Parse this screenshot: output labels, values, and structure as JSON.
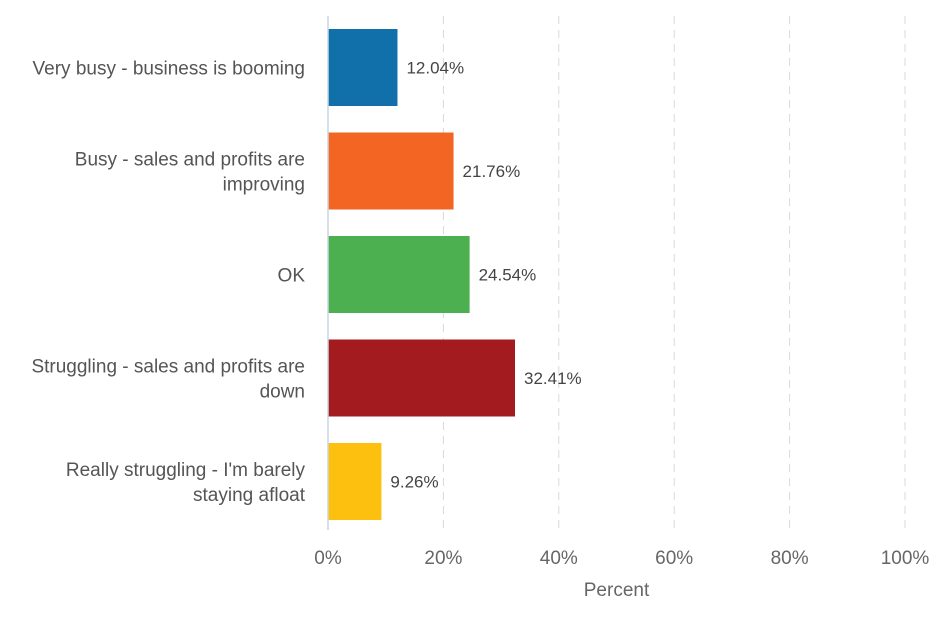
{
  "chart_data": {
    "type": "bar",
    "orientation": "horizontal",
    "title": "",
    "xlabel": "Percent",
    "ylabel": "",
    "xlim": [
      0,
      100
    ],
    "xticks": [
      "0%",
      "20%",
      "40%",
      "60%",
      "80%",
      "100%"
    ],
    "xtick_values": [
      0,
      20,
      40,
      60,
      80,
      100
    ],
    "grid": true,
    "legend": "none",
    "categories": [
      [
        "Very busy - business is booming"
      ],
      [
        "Busy - sales and profits are",
        "improving"
      ],
      [
        "OK"
      ],
      [
        "Struggling - sales and profits are",
        "down"
      ],
      [
        "Really struggling - I'm barely",
        "staying afloat"
      ]
    ],
    "values": [
      12.04,
      21.76,
      24.54,
      32.41,
      9.26
    ],
    "data_labels": [
      "12.04%",
      "21.76%",
      "24.54%",
      "32.41%",
      "9.26%"
    ],
    "colors": [
      "#1170aa",
      "#f26522",
      "#4caf50",
      "#a31b1f",
      "#fdc00f"
    ]
  }
}
